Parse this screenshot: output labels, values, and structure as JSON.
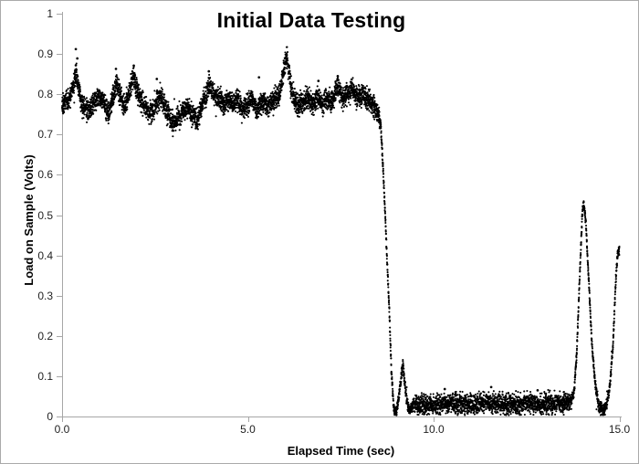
{
  "chart_data": {
    "type": "scatter",
    "title": "Initial Data Testing",
    "xlabel": "Elapsed Time (sec)",
    "ylabel": "Load on Sample (Volts)",
    "xlim": [
      0,
      15
    ],
    "ylim": [
      0,
      1
    ],
    "grid": false,
    "legend": null,
    "axis_color": "#a6a6a6",
    "marker": {
      "color": "#000000",
      "size": 2.1
    },
    "xticks": [
      {
        "v": 0,
        "label": "0.0"
      },
      {
        "v": 5,
        "label": "5.0"
      },
      {
        "v": 10,
        "label": "10.0"
      },
      {
        "v": 15,
        "label": "15.0"
      }
    ],
    "yticks": [
      {
        "v": 1.0,
        "label": "1"
      },
      {
        "v": 0.9,
        "label": "0.9"
      },
      {
        "v": 0.8,
        "label": "0.8"
      },
      {
        "v": 0.7,
        "label": "0.7"
      },
      {
        "v": 0.6,
        "label": "0.6"
      },
      {
        "v": 0.5,
        "label": "0.5"
      },
      {
        "v": 0.4,
        "label": "0.4"
      },
      {
        "v": 0.3,
        "label": "0.3"
      },
      {
        "v": 0.2,
        "label": "0.2"
      },
      {
        "v": 0.1,
        "label": "0.1"
      },
      {
        "v": 0.0,
        "label": "0"
      }
    ],
    "series": [
      {
        "name": "Load on Sample",
        "points_count": 7200,
        "seed": 1337,
        "mean_curve": [
          [
            0,
            0.775
          ],
          [
            0.2,
            0.79
          ],
          [
            0.38,
            0.845
          ],
          [
            0.55,
            0.77
          ],
          [
            0.7,
            0.762
          ],
          [
            0.85,
            0.78
          ],
          [
            1.0,
            0.8
          ],
          [
            1.12,
            0.78
          ],
          [
            1.25,
            0.757
          ],
          [
            1.47,
            0.825
          ],
          [
            1.67,
            0.768
          ],
          [
            1.8,
            0.8
          ],
          [
            1.92,
            0.845
          ],
          [
            2.05,
            0.8
          ],
          [
            2.16,
            0.78
          ],
          [
            2.4,
            0.75
          ],
          [
            2.55,
            0.78
          ],
          [
            2.65,
            0.8
          ],
          [
            2.8,
            0.76
          ],
          [
            3.0,
            0.73
          ],
          [
            3.2,
            0.752
          ],
          [
            3.39,
            0.77
          ],
          [
            3.5,
            0.75
          ],
          [
            3.64,
            0.737
          ],
          [
            3.8,
            0.78
          ],
          [
            3.96,
            0.822
          ],
          [
            4.1,
            0.8
          ],
          [
            4.25,
            0.788
          ],
          [
            4.37,
            0.773
          ],
          [
            4.5,
            0.79
          ],
          [
            4.6,
            0.775
          ],
          [
            4.72,
            0.79
          ],
          [
            4.85,
            0.76
          ],
          [
            5.0,
            0.775
          ],
          [
            5.1,
            0.79
          ],
          [
            5.25,
            0.758
          ],
          [
            5.4,
            0.78
          ],
          [
            5.55,
            0.77
          ],
          [
            5.7,
            0.79
          ],
          [
            5.85,
            0.8
          ],
          [
            6.04,
            0.893
          ],
          [
            6.2,
            0.8
          ],
          [
            6.35,
            0.77
          ],
          [
            6.5,
            0.78
          ],
          [
            6.62,
            0.795
          ],
          [
            6.75,
            0.77
          ],
          [
            6.88,
            0.795
          ],
          [
            7.0,
            0.775
          ],
          [
            7.12,
            0.79
          ],
          [
            7.25,
            0.775
          ],
          [
            7.4,
            0.822
          ],
          [
            7.55,
            0.79
          ],
          [
            7.68,
            0.8
          ],
          [
            7.81,
            0.813
          ],
          [
            7.95,
            0.79
          ],
          [
            8.1,
            0.8
          ],
          [
            8.25,
            0.785
          ],
          [
            8.38,
            0.77
          ],
          [
            8.5,
            0.76
          ],
          [
            8.58,
            0.72
          ],
          [
            8.65,
            0.6
          ],
          [
            8.72,
            0.45
          ],
          [
            8.8,
            0.28
          ],
          [
            8.87,
            0.1
          ],
          [
            8.93,
            0.02
          ],
          [
            9.0,
            0.012
          ],
          [
            9.05,
            0.04
          ],
          [
            9.17,
            0.132
          ],
          [
            9.25,
            0.06
          ],
          [
            9.32,
            0.016
          ],
          [
            9.45,
            0.028
          ],
          [
            10.0,
            0.03
          ],
          [
            10.5,
            0.033
          ],
          [
            11.0,
            0.03
          ],
          [
            11.5,
            0.035
          ],
          [
            12.0,
            0.03
          ],
          [
            12.5,
            0.033
          ],
          [
            13.0,
            0.03
          ],
          [
            13.4,
            0.032
          ],
          [
            13.7,
            0.036
          ],
          [
            13.78,
            0.06
          ],
          [
            13.85,
            0.15
          ],
          [
            13.92,
            0.32
          ],
          [
            14.0,
            0.5
          ],
          [
            14.04,
            0.533
          ],
          [
            14.1,
            0.48
          ],
          [
            14.18,
            0.33
          ],
          [
            14.26,
            0.18
          ],
          [
            14.35,
            0.08
          ],
          [
            14.45,
            0.025
          ],
          [
            14.55,
            0.013
          ],
          [
            14.65,
            0.025
          ],
          [
            14.75,
            0.08
          ],
          [
            14.83,
            0.18
          ],
          [
            14.9,
            0.33
          ],
          [
            14.95,
            0.405
          ],
          [
            15.0,
            0.415
          ]
        ],
        "noise_sigma_curve": [
          [
            0,
            0.013
          ],
          [
            8.5,
            0.013
          ],
          [
            8.62,
            0.006
          ],
          [
            9.4,
            0.007
          ],
          [
            9.6,
            0.012
          ],
          [
            13.6,
            0.012
          ],
          [
            13.76,
            0.006
          ],
          [
            14.4,
            0.006
          ],
          [
            14.6,
            0.009
          ],
          [
            14.72,
            0.006
          ],
          [
            15,
            0.006
          ]
        ],
        "outliers": [
          [
            0.37,
            0.912
          ],
          [
            0.37,
            0.872
          ],
          [
            0.41,
            0.889
          ],
          [
            1.45,
            0.863
          ],
          [
            1.93,
            0.871
          ],
          [
            2.55,
            0.838
          ],
          [
            3.95,
            0.857
          ],
          [
            5.3,
            0.842
          ],
          [
            6.9,
            0.833
          ],
          [
            7.42,
            0.845
          ],
          [
            10.3,
            0.068
          ],
          [
            11.55,
            0.073
          ],
          [
            12.8,
            0.065
          ]
        ]
      }
    ]
  }
}
